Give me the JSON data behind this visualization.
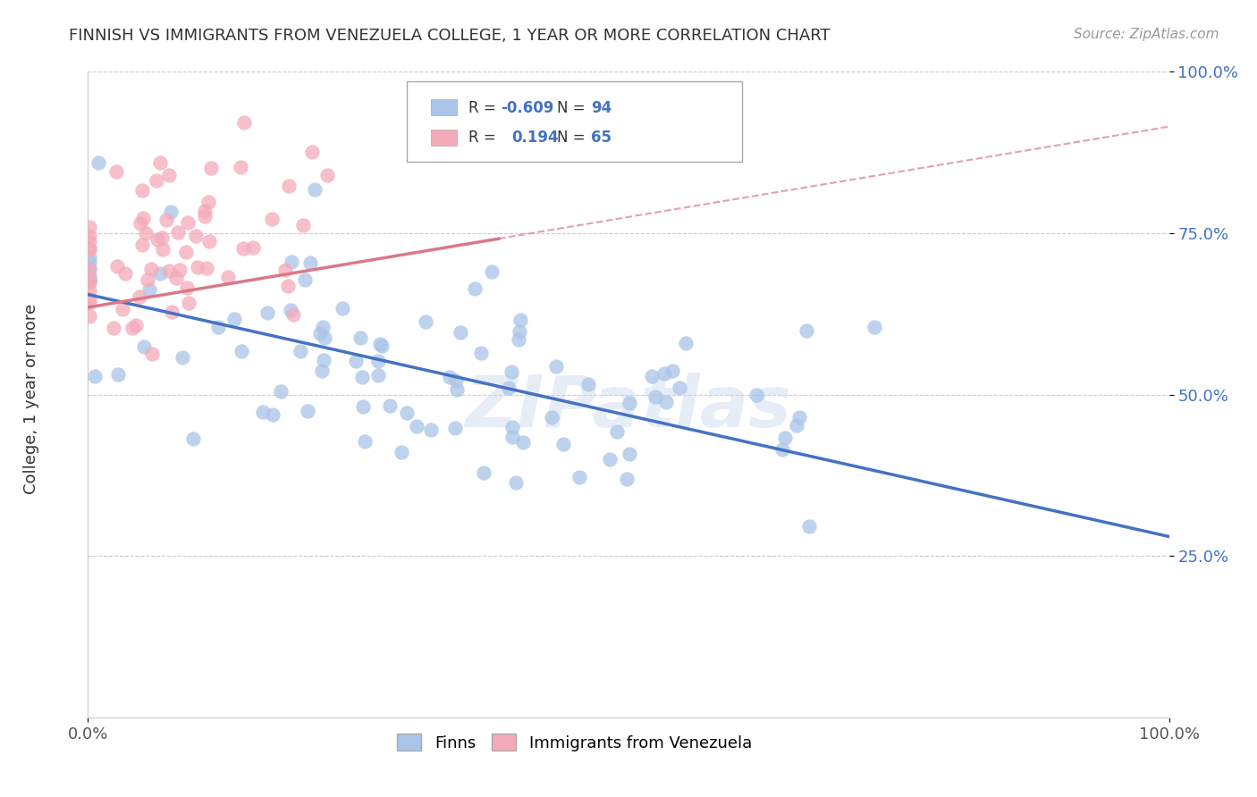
{
  "title": "FINNISH VS IMMIGRANTS FROM VENEZUELA COLLEGE, 1 YEAR OR MORE CORRELATION CHART",
  "source": "Source: ZipAtlas.com",
  "ylabel": "College, 1 year or more",
  "xlim": [
    0.0,
    1.0
  ],
  "ylim": [
    0.0,
    1.0
  ],
  "yticks": [
    0.25,
    0.5,
    0.75,
    1.0
  ],
  "ytick_labels": [
    "25.0%",
    "50.0%",
    "75.0%",
    "100.0%"
  ],
  "xticks": [
    0.0,
    1.0
  ],
  "xtick_labels": [
    "0.0%",
    "100.0%"
  ],
  "legend_r_finns": "-0.609",
  "legend_n_finns": "94",
  "legend_r_immigrants": "0.194",
  "legend_n_immigrants": "65",
  "finns_color": "#aac4e8",
  "immigrants_color": "#f4aab9",
  "line_finns_color": "#4472c4",
  "line_immigrants_color": "#d9788a",
  "watermark_text": "ZIPatlas",
  "background_color": "#ffffff",
  "grid_color": "#cccccc",
  "finns_seed": 42,
  "immigrants_seed": 7,
  "finns_R": -0.609,
  "finns_N": 94,
  "immigrants_R": 0.194,
  "immigrants_N": 65,
  "title_color": "#333333",
  "source_color": "#999999",
  "axis_label_color": "#4472c4",
  "finns_label": "Finns",
  "immigrants_label": "Immigrants from Venezuela",
  "finns_line_intercept": 0.655,
  "finns_line_slope": -0.375,
  "immigrants_line_intercept": 0.635,
  "immigrants_line_slope": 0.28
}
